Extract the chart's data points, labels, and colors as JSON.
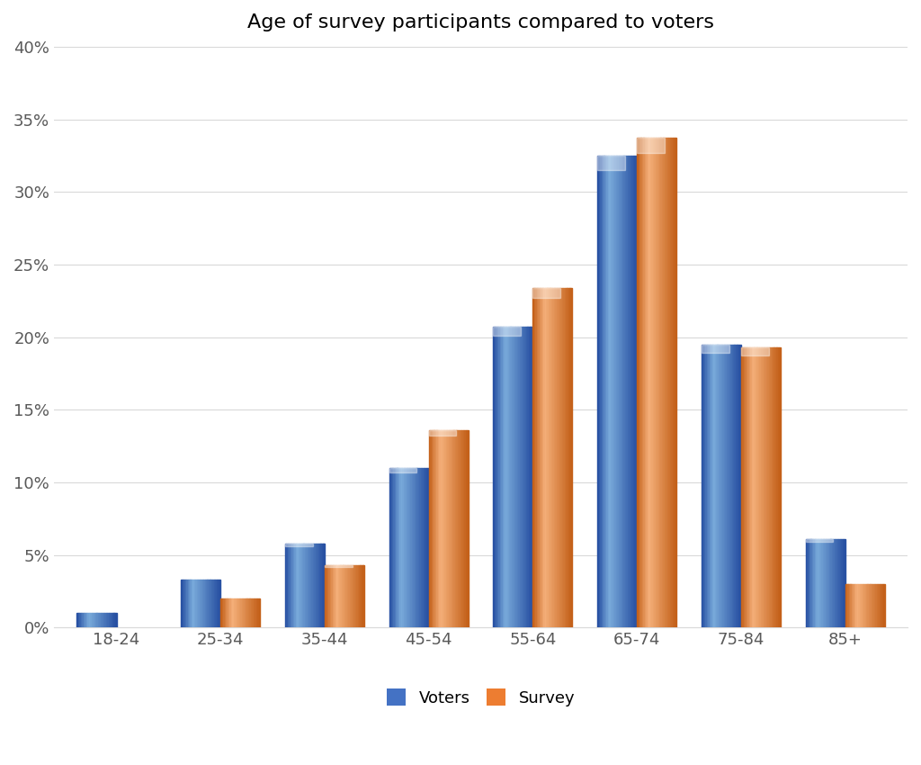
{
  "title": "Age of survey participants compared to voters",
  "categories": [
    "18-24",
    "25-34",
    "35-44",
    "45-54",
    "55-64",
    "65-74",
    "75-84",
    "85+"
  ],
  "voters": [
    1.0,
    3.3,
    5.8,
    11.0,
    20.7,
    32.5,
    19.5,
    6.1
  ],
  "survey": [
    0.0,
    2.0,
    4.3,
    13.6,
    23.4,
    33.7,
    19.3,
    3.0
  ],
  "voters_color_main": "#4472C4",
  "voters_color_light": "#7AABDB",
  "voters_color_dark": "#2851A3",
  "survey_color_main": "#ED7D31",
  "survey_color_light": "#F5B07A",
  "survey_color_dark": "#C4611A",
  "ylim": [
    0,
    0.4
  ],
  "yticks": [
    0.0,
    0.05,
    0.1,
    0.15,
    0.2,
    0.25,
    0.3,
    0.35,
    0.4
  ],
  "ytick_labels": [
    "0%",
    "5%",
    "10%",
    "15%",
    "20%",
    "25%",
    "30%",
    "35%",
    "40%"
  ],
  "legend_labels": [
    "Voters",
    "Survey"
  ],
  "background_color": "#FFFFFF",
  "grid_color": "#D9D9D9",
  "bar_width": 0.38,
  "title_fontsize": 16,
  "tick_fontsize": 13,
  "legend_fontsize": 13
}
